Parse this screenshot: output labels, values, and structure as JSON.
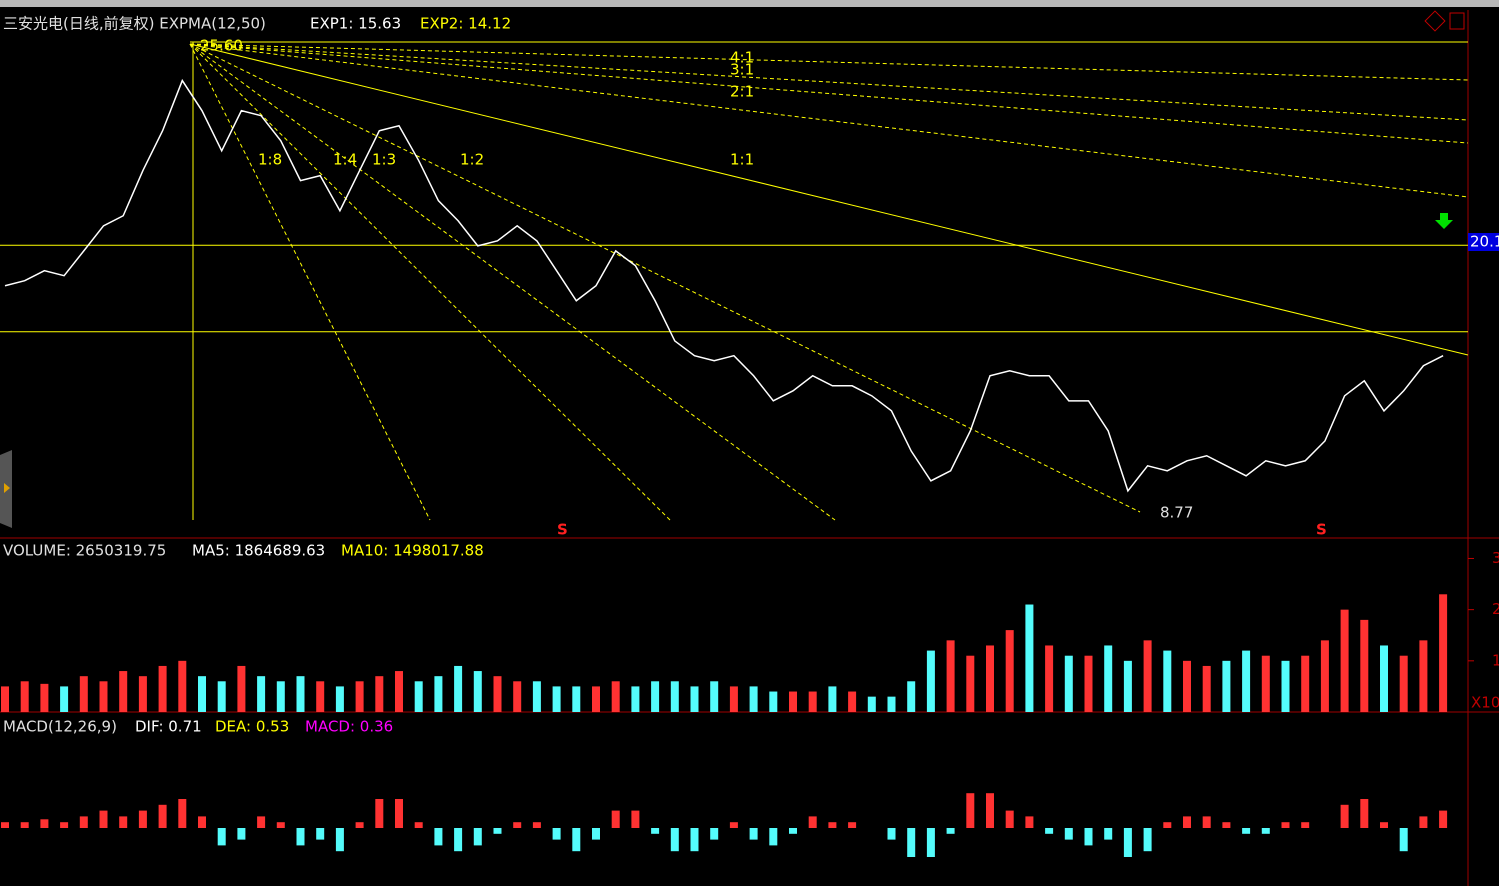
{
  "chart_data": [
    {
      "type": "line",
      "title": "三安光电(日线,前复权) EXPMA(12,50)",
      "indicators": [
        "EXP1: 15.63",
        "EXP2: 14.12"
      ],
      "color": "#ffffff",
      "values": [
        16.95,
        17.13,
        17.49,
        17.31,
        18.2,
        19.1,
        19.46,
        21.08,
        22.51,
        24.31,
        23.23,
        21.79,
        23.23,
        23.05,
        22.15,
        20.72,
        20.9,
        19.64,
        21.08,
        22.51,
        22.69,
        21.44,
        20.0,
        19.28,
        18.38,
        18.56,
        19.1,
        18.56,
        17.49,
        16.41,
        16.95,
        18.2,
        17.67,
        16.41,
        14.97,
        14.44,
        14.26,
        14.44,
        13.72,
        12.82,
        13.18,
        13.72,
        13.36,
        13.36,
        13.0,
        12.46,
        11.02,
        9.95,
        10.31,
        11.74,
        13.72,
        13.9,
        13.72,
        13.72,
        12.82,
        12.82,
        11.74,
        9.59,
        10.49,
        10.31,
        10.67,
        10.85,
        10.49,
        10.13,
        10.67,
        10.49,
        10.67,
        11.38,
        13.0,
        13.54,
        12.46,
        13.18,
        14.08,
        14.44
      ],
      "ylim": [
        7.9,
        27.2
      ],
      "levels": [
        18.4,
        15.3
      ],
      "level_tag": "20.1",
      "annotations": [
        "25.60",
        "8.77"
      ],
      "fan_labels": [
        "1:8",
        "1:4",
        "1:3",
        "1:2",
        "1:1",
        "2:1",
        "3:1",
        "4:1"
      ]
    },
    {
      "type": "bar",
      "title": "VOLUME: 2650319.75",
      "indicators": [
        "MA5: 1864689.63",
        "MA10: 1498017.88"
      ],
      "values": [
        0.5,
        0.6,
        0.55,
        0.5,
        0.7,
        0.6,
        0.8,
        0.7,
        0.9,
        1.0,
        0.7,
        0.6,
        0.9,
        0.7,
        0.6,
        0.7,
        0.6,
        0.5,
        0.6,
        0.7,
        0.8,
        0.6,
        0.7,
        0.9,
        0.8,
        0.7,
        0.6,
        0.6,
        0.5,
        0.5,
        0.5,
        0.6,
        0.5,
        0.6,
        0.6,
        0.5,
        0.6,
        0.5,
        0.5,
        0.4,
        0.4,
        0.4,
        0.5,
        0.4,
        0.3,
        0.3,
        0.6,
        1.2,
        1.4,
        1.1,
        1.3,
        1.6,
        2.1,
        1.3,
        1.1,
        1.1,
        1.3,
        1.0,
        1.4,
        1.2,
        1.0,
        0.9,
        1.0,
        1.2,
        1.1,
        1.0,
        1.1,
        1.4,
        2.0,
        1.8,
        1.3,
        1.1,
        1.4,
        2.3
      ],
      "ylim": [
        0,
        3.4
      ],
      "yticks": [
        1,
        2,
        3
      ],
      "axis_unit": "X10"
    },
    {
      "type": "bar",
      "title": "MACD(12,26,9)",
      "indicators": [
        "DIF: 0.71",
        "DEA: 0.53",
        "MACD: 0.36"
      ],
      "values": [
        0.1,
        0.1,
        0.15,
        0.1,
        0.2,
        0.3,
        0.2,
        0.3,
        0.4,
        0.5,
        0.2,
        -0.3,
        -0.2,
        0.2,
        0.1,
        -0.3,
        -0.2,
        -0.4,
        0.1,
        0.5,
        0.5,
        0.1,
        -0.3,
        -0.4,
        -0.3,
        -0.1,
        0.1,
        0.1,
        -0.2,
        -0.4,
        -0.2,
        0.3,
        0.3,
        -0.1,
        -0.4,
        -0.4,
        -0.2,
        0.1,
        -0.2,
        -0.3,
        -0.1,
        0.2,
        0.1,
        0.1,
        0.0,
        -0.2,
        -0.5,
        -0.5,
        -0.1,
        0.6,
        0.6,
        0.3,
        0.2,
        -0.1,
        -0.2,
        -0.3,
        -0.2,
        -0.5,
        -0.4,
        0.1,
        0.2,
        0.2,
        0.1,
        -0.1,
        -0.1,
        0.1,
        0.1,
        0.0,
        0.4,
        0.5,
        0.1,
        -0.4,
        0.2,
        0.3
      ],
      "ylim": [
        -1,
        2
      ]
    }
  ]
}
